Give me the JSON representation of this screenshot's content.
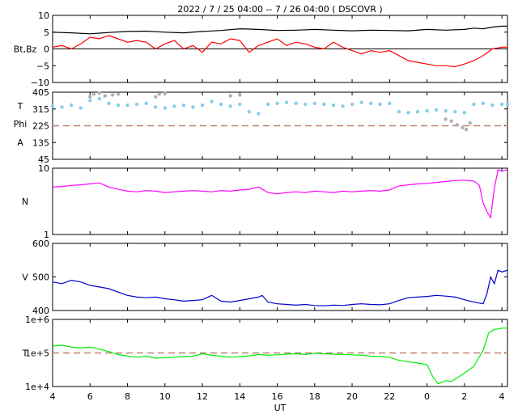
{
  "title": "2022 /  7 / 25   04:00 --  7 / 26   04:00 ( DSCOVR )",
  "x_axis": {
    "label": "UT",
    "ticks": [
      "4",
      "6",
      "8",
      "10",
      "12",
      "14",
      "16",
      "18",
      "20",
      "22",
      "0",
      "2",
      "4"
    ],
    "range_hours": [
      4,
      28.3
    ]
  },
  "colors": {
    "bt": "#000000",
    "bz": "#ff0000",
    "theta": "#87ceeb",
    "phi": "#b0b0b0",
    "density": "#ff00ff",
    "speed": "#0000cc",
    "temperature": "#00ee00",
    "reference": "#c08070"
  },
  "chart_data": [
    {
      "type": "line",
      "panel": "magnetic-field",
      "ylabel": "Bt,Bz",
      "ylim": [
        -10,
        10
      ],
      "yticks": [
        "10",
        "5",
        "0",
        "−5",
        "−10"
      ],
      "reference_line": 0,
      "series": [
        {
          "key": "bt",
          "x": [
            4,
            5,
            6,
            7,
            8,
            9,
            10,
            11,
            12,
            13,
            14,
            15,
            16,
            17,
            18,
            19,
            20,
            21,
            22,
            23,
            24,
            25,
            26,
            26.5,
            27,
            27.5,
            28,
            28.3
          ],
          "values": [
            5,
            4.8,
            4.5,
            4.9,
            5.2,
            5.3,
            5,
            4.8,
            5.2,
            5.5,
            6,
            5.8,
            5.5,
            5.6,
            5.8,
            5.6,
            5.4,
            5.6,
            5.5,
            5.4,
            5.8,
            5.6,
            5.8,
            6.2,
            6,
            6.5,
            6.8,
            6.8
          ]
        },
        {
          "key": "bz",
          "x": [
            4,
            4.5,
            5,
            5.5,
            6,
            6.5,
            7,
            7.5,
            8,
            8.5,
            9,
            9.5,
            10,
            10.5,
            11,
            11.5,
            12,
            12.5,
            13,
            13.5,
            14,
            14.5,
            15,
            15.5,
            16,
            16.5,
            17,
            17.5,
            18,
            18.5,
            19,
            19.5,
            20,
            20.5,
            21,
            21.5,
            22,
            22.5,
            23,
            23.5,
            24,
            24.5,
            25,
            25.5,
            26,
            26.5,
            27,
            27.5,
            28,
            28.3
          ],
          "values": [
            0.5,
            1,
            0,
            1.5,
            3.5,
            3,
            4,
            3,
            2,
            2.5,
            2,
            0,
            1.5,
            2.5,
            0,
            1,
            -1,
            2,
            1.5,
            3,
            2.5,
            -1,
            1,
            2,
            3,
            1,
            2,
            1.5,
            0.5,
            0,
            2,
            0.5,
            -0.5,
            -1.5,
            -0.5,
            -1,
            -0.5,
            -2,
            -3.5,
            -4,
            -4.5,
            -5,
            -5,
            -5.3,
            -4.5,
            -3.5,
            -2,
            0,
            0.5,
            0.5
          ]
        }
      ]
    },
    {
      "type": "scatter",
      "panel": "field-angles",
      "ylabel_lines": [
        "T",
        "Phi",
        "A"
      ],
      "ylim": [
        45,
        405
      ],
      "yticks": [
        "405",
        "315",
        "225",
        "135",
        "45"
      ],
      "reference_line": 225,
      "series": [
        {
          "key": "theta",
          "x": [
            4,
            4.5,
            5,
            5.5,
            6,
            6.5,
            7,
            7.5,
            8,
            8.5,
            9,
            9.5,
            10,
            10.5,
            11,
            11.5,
            12,
            12.5,
            13,
            13.5,
            14,
            14.5,
            15,
            15.5,
            16,
            16.5,
            17,
            17.5,
            18,
            18.5,
            19,
            19.5,
            20,
            20.5,
            21,
            21.5,
            22,
            22.5,
            23,
            23.5,
            24,
            24.5,
            25,
            25.5,
            26,
            26.5,
            27,
            27.5,
            28,
            28.3
          ],
          "values": [
            330,
            325,
            335,
            320,
            360,
            370,
            345,
            335,
            335,
            340,
            345,
            325,
            320,
            330,
            335,
            325,
            335,
            355,
            340,
            330,
            340,
            300,
            290,
            340,
            345,
            350,
            345,
            340,
            345,
            340,
            335,
            330,
            340,
            350,
            345,
            340,
            345,
            300,
            295,
            300,
            305,
            310,
            305,
            300,
            295,
            340,
            345,
            335,
            340,
            340
          ]
        },
        {
          "key": "phi",
          "x": [
            6,
            6.2,
            6.5,
            6.8,
            7.2,
            7.5,
            9.5,
            9.7,
            10,
            13.5,
            14,
            25,
            25.3,
            25.6,
            25.9,
            26.1,
            26.3
          ],
          "values": [
            380,
            395,
            400,
            385,
            390,
            395,
            380,
            395,
            400,
            385,
            390,
            260,
            250,
            230,
            215,
            205,
            240
          ]
        }
      ]
    },
    {
      "type": "line",
      "panel": "density",
      "ylabel": "N",
      "ylim": [
        1,
        10
      ],
      "log_scale": true,
      "yticks": [
        "10",
        "1"
      ],
      "series": [
        {
          "key": "density",
          "x": [
            4,
            4.5,
            5,
            5.5,
            6,
            6.5,
            7,
            7.5,
            8,
            8.5,
            9,
            9.5,
            10,
            10.5,
            11,
            11.5,
            12,
            12.5,
            13,
            13.5,
            14,
            14.5,
            15,
            15.5,
            16,
            16.5,
            17,
            17.5,
            18,
            18.5,
            19,
            19.5,
            20,
            20.5,
            21,
            21.5,
            22,
            22.5,
            23,
            23.5,
            24,
            24.5,
            25,
            25.5,
            26,
            26.5,
            26.8,
            27,
            27.2,
            27.4,
            27.6,
            27.8,
            28,
            28.3
          ],
          "values": [
            5.2,
            5.3,
            5.5,
            5.6,
            5.8,
            6,
            5.2,
            4.8,
            4.5,
            4.4,
            4.6,
            4.5,
            4.3,
            4.4,
            4.5,
            4.6,
            4.5,
            4.4,
            4.6,
            4.5,
            4.7,
            4.8,
            5.2,
            4.3,
            4.1,
            4.3,
            4.4,
            4.3,
            4.5,
            4.4,
            4.3,
            4.5,
            4.4,
            4.5,
            4.6,
            4.5,
            4.7,
            5.4,
            5.6,
            5.8,
            5.9,
            6.1,
            6.3,
            6.5,
            6.6,
            6.4,
            5.5,
            3,
            2.2,
            1.8,
            5,
            9.5,
            9,
            9.5
          ]
        }
      ]
    },
    {
      "type": "line",
      "panel": "speed",
      "ylabel": "V",
      "ylim": [
        400,
        600
      ],
      "yticks": [
        "600",
        "500",
        "400"
      ],
      "series": [
        {
          "key": "speed",
          "x": [
            4,
            4.5,
            5,
            5.5,
            6,
            6.5,
            7,
            7.5,
            8,
            8.5,
            9,
            9.5,
            10,
            10.5,
            11,
            11.5,
            12,
            12.5,
            13,
            13.5,
            14,
            14.5,
            15,
            15.2,
            15.5,
            16,
            16.5,
            17,
            17.5,
            18,
            18.5,
            19,
            19.5,
            20,
            20.5,
            21,
            21.5,
            22,
            22.5,
            23,
            23.5,
            24,
            24.5,
            25,
            25.5,
            26,
            26.5,
            27,
            27.2,
            27.4,
            27.6,
            27.8,
            28,
            28.3
          ],
          "values": [
            485,
            480,
            490,
            485,
            475,
            470,
            465,
            455,
            445,
            440,
            438,
            440,
            435,
            432,
            428,
            430,
            432,
            445,
            428,
            425,
            430,
            435,
            440,
            445,
            425,
            420,
            418,
            416,
            418,
            415,
            414,
            416,
            415,
            418,
            420,
            418,
            417,
            420,
            430,
            438,
            440,
            442,
            445,
            443,
            440,
            432,
            425,
            420,
            450,
            500,
            480,
            520,
            515,
            520
          ]
        }
      ]
    },
    {
      "type": "line",
      "panel": "temperature",
      "ylabel": "T",
      "ylim": [
        10000,
        1000000
      ],
      "log_scale": true,
      "yticks": [
        "1e+6",
        "1e+5",
        "1e+4"
      ],
      "reference_line": 100000,
      "series": [
        {
          "key": "temperature",
          "x": [
            4,
            4.5,
            5,
            5.5,
            6,
            6.5,
            7,
            7.5,
            8,
            8.5,
            9,
            9.5,
            10,
            10.5,
            11,
            11.5,
            12,
            12.5,
            13,
            13.5,
            14,
            14.5,
            15,
            15.5,
            16,
            16.5,
            17,
            17.5,
            18,
            18.5,
            19,
            19.5,
            20,
            20.5,
            21,
            21.5,
            22,
            22.5,
            23,
            23.5,
            24,
            24.3,
            24.6,
            25,
            25.3,
            25.6,
            26,
            26.5,
            27,
            27.3,
            27.6,
            28,
            28.3
          ],
          "values": [
            160000,
            170000,
            150000,
            140000,
            150000,
            130000,
            110000,
            90000,
            80000,
            75000,
            80000,
            70000,
            72000,
            75000,
            78000,
            80000,
            95000,
            85000,
            80000,
            75000,
            78000,
            82000,
            90000,
            85000,
            88000,
            92000,
            95000,
            90000,
            98000,
            95000,
            92000,
            90000,
            88000,
            85000,
            80000,
            78000,
            75000,
            60000,
            55000,
            50000,
            45000,
            20000,
            12000,
            15000,
            14000,
            18000,
            25000,
            40000,
            120000,
            400000,
            500000,
            550000,
            550000
          ]
        }
      ]
    }
  ]
}
